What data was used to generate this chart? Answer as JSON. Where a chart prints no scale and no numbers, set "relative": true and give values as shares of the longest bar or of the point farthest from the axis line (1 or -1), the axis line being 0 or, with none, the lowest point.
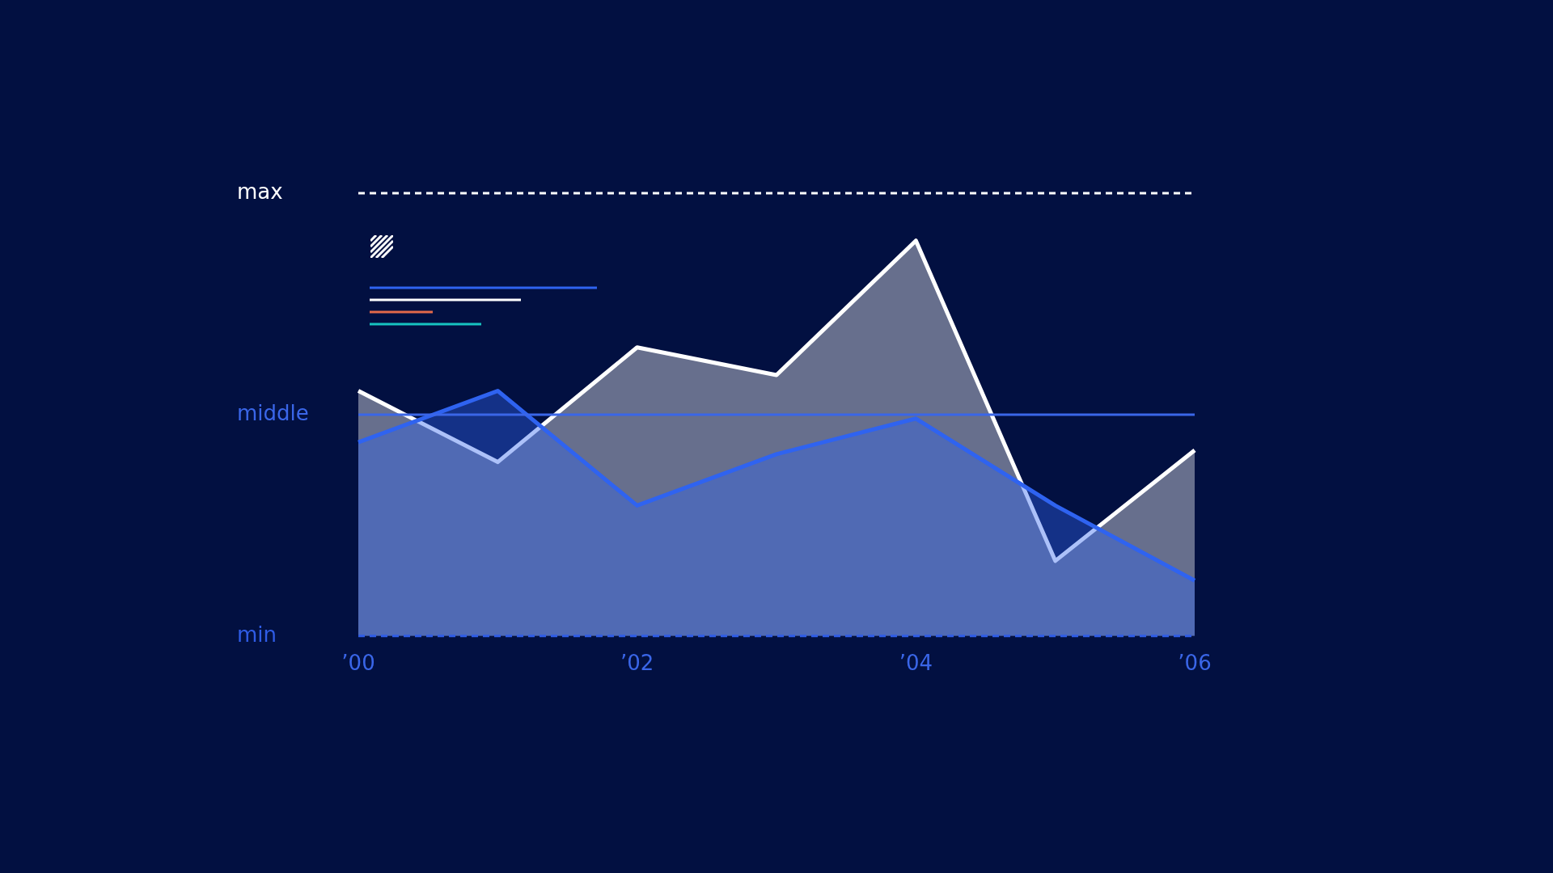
{
  "chart_data": {
    "type": "area",
    "relative": true,
    "categories": [
      "’00",
      null,
      "’02",
      null,
      "’04",
      null,
      "’06"
    ],
    "series": [
      {
        "color": "#ffffff",
        "values": [
          0.62,
          0.44,
          0.73,
          0.66,
          1,
          0.19,
          0.47
        ]
      },
      {
        "color": "#2f63f0",
        "values": [
          0.49,
          0.62,
          0.33,
          0.46,
          0.55,
          0.33,
          0.14
        ]
      }
    ],
    "tick_labels": "x",
    "grid": false,
    "legend": false,
    "marker": "none",
    "line_style": "solid",
    "ref_lines": [
      {
        "axis": "y",
        "value": 1.12,
        "label": "max",
        "color": "#ffffff",
        "line_style": "dashed"
      },
      {
        "axis": "y",
        "value": 0.56,
        "label": "middle",
        "color": "#3a66e8",
        "line_style": "solid"
      },
      {
        "axis": "y",
        "value": 0,
        "label": "min",
        "color": "#2f5ce6",
        "line_style": "dashed"
      }
    ]
  }
}
